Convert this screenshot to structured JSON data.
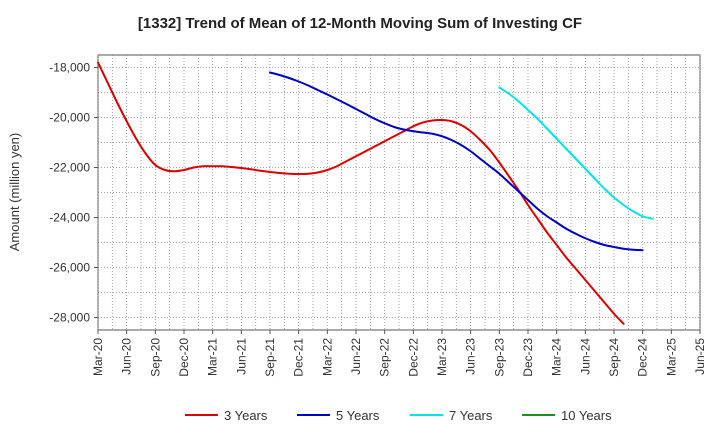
{
  "chart_data": {
    "type": "line",
    "title": "[1332]  Trend of Mean of 12-Month Moving Sum of Investing CF",
    "xlabel": "",
    "ylabel": "Amount (million yen)",
    "ylim": [
      -28500,
      -17500
    ],
    "yticks": [
      -18000,
      -20000,
      -22000,
      -24000,
      -26000,
      -28000
    ],
    "ytick_labels": [
      "-18,000",
      "-20,000",
      "-22,000",
      "-24,000",
      "-26,000",
      "-28,000"
    ],
    "x_start": "Mar-20",
    "x_end": "Jun-25",
    "xtick_labels": [
      "Mar-20",
      "Jun-20",
      "Sep-20",
      "Dec-20",
      "Mar-21",
      "Jun-21",
      "Sep-21",
      "Dec-21",
      "Mar-22",
      "Jun-22",
      "Sep-22",
      "Dec-22",
      "Mar-23",
      "Jun-23",
      "Sep-23",
      "Dec-23",
      "Mar-24",
      "Jun-24",
      "Sep-24",
      "Dec-24",
      "Mar-25",
      "Jun-25"
    ],
    "grid": true,
    "legend_position": "bottom",
    "series": [
      {
        "name": "3 Years",
        "color": "#dd0000",
        "start_month_index": 0,
        "values": [
          -17800,
          -18600,
          -19400,
          -20150,
          -20850,
          -21450,
          -21900,
          -22100,
          -22150,
          -22100,
          -22000,
          -21950,
          -21950,
          -21950,
          -21980,
          -22020,
          -22070,
          -22130,
          -22180,
          -22220,
          -22250,
          -22260,
          -22250,
          -22200,
          -22100,
          -21950,
          -21750,
          -21550,
          -21350,
          -21150,
          -20950,
          -20750,
          -20550,
          -20350,
          -20200,
          -20120,
          -20100,
          -20150,
          -20300,
          -20550,
          -20900,
          -21300,
          -21800,
          -22350,
          -22900,
          -23500,
          -24050,
          -24600,
          -25100,
          -25600,
          -26050,
          -26500,
          -26950,
          -27400,
          -27850,
          -28250
        ]
      },
      {
        "name": "5 Years",
        "color": "#0000cc",
        "start_month_index": 18,
        "values": [
          -18200,
          -18300,
          -18420,
          -18560,
          -18720,
          -18900,
          -19080,
          -19270,
          -19460,
          -19660,
          -19860,
          -20060,
          -20230,
          -20380,
          -20480,
          -20550,
          -20600,
          -20650,
          -20750,
          -20900,
          -21100,
          -21350,
          -21650,
          -21950,
          -22250,
          -22600,
          -22950,
          -23300,
          -23650,
          -23950,
          -24200,
          -24450,
          -24650,
          -24830,
          -24980,
          -25100,
          -25180,
          -25250,
          -25290,
          -25310
        ]
      },
      {
        "name": "7 Years",
        "color": "#00e5e5",
        "start_month_index": 42,
        "values": [
          -18800,
          -19050,
          -19350,
          -19700,
          -20050,
          -20450,
          -20850,
          -21250,
          -21650,
          -22050,
          -22450,
          -22850,
          -23200,
          -23500,
          -23750,
          -23950,
          -24050
        ]
      },
      {
        "name": "10 Years",
        "color": "#228b22",
        "start_month_index": 0,
        "values": []
      }
    ]
  }
}
